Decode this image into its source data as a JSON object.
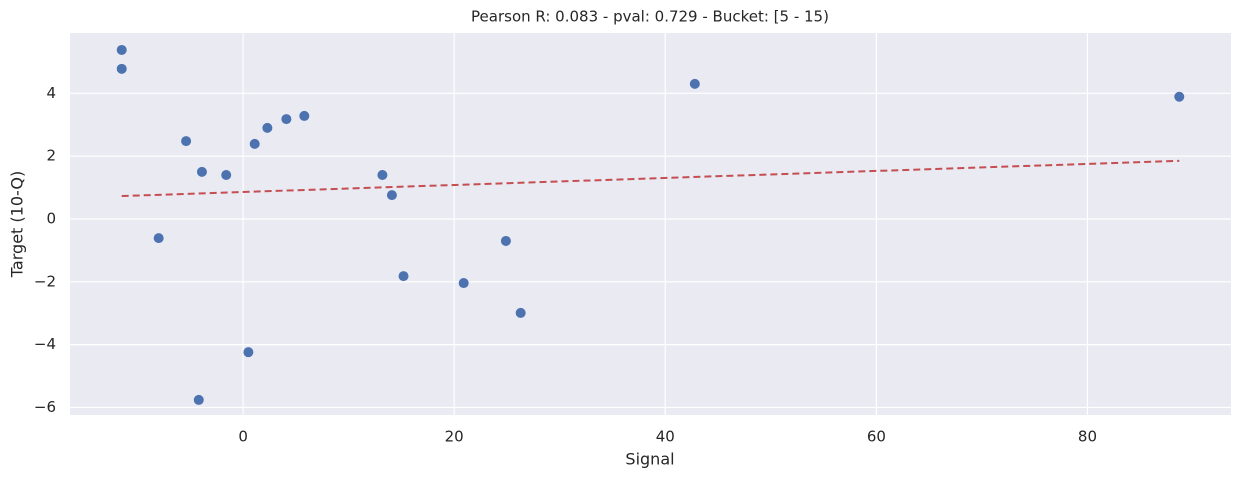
{
  "chart_data": {
    "type": "scatter",
    "title": "Pearson R: 0.083 - pval: 0.729 - Bucket: [5 - 15)",
    "x_label": "Signal",
    "y_label": "Target (10-Q)",
    "x": [
      -11.5,
      -11.5,
      -5.4,
      -3.9,
      -1.6,
      -8.0,
      -4.2,
      0.5,
      1.1,
      2.3,
      4.1,
      5.8,
      13.2,
      14.1,
      15.2,
      20.9,
      24.9,
      26.3,
      42.8,
      88.7
    ],
    "values": [
      5.38,
      4.78,
      2.48,
      1.5,
      1.4,
      -0.61,
      -5.76,
      -4.24,
      2.39,
      2.9,
      3.18,
      3.28,
      1.4,
      0.76,
      -1.82,
      -2.04,
      -0.7,
      -2.99,
      4.3,
      3.89
    ],
    "color": "#4c72b0",
    "trend": {
      "x": [
        -11.5,
        88.7
      ],
      "values": [
        0.73,
        1.85
      ],
      "color": "#c44e52",
      "dashed": true
    },
    "xlim": [
      -16.4,
      93.6
    ],
    "ylim": [
      -6.24,
      5.92
    ],
    "xticks": [
      0,
      20,
      40,
      60,
      80
    ],
    "yticks": [
      {
        "value": -6,
        "label": "−6"
      },
      {
        "value": -4,
        "label": "−4"
      },
      {
        "value": -2,
        "label": "−2"
      },
      0,
      2,
      4
    ],
    "grid": true
  }
}
